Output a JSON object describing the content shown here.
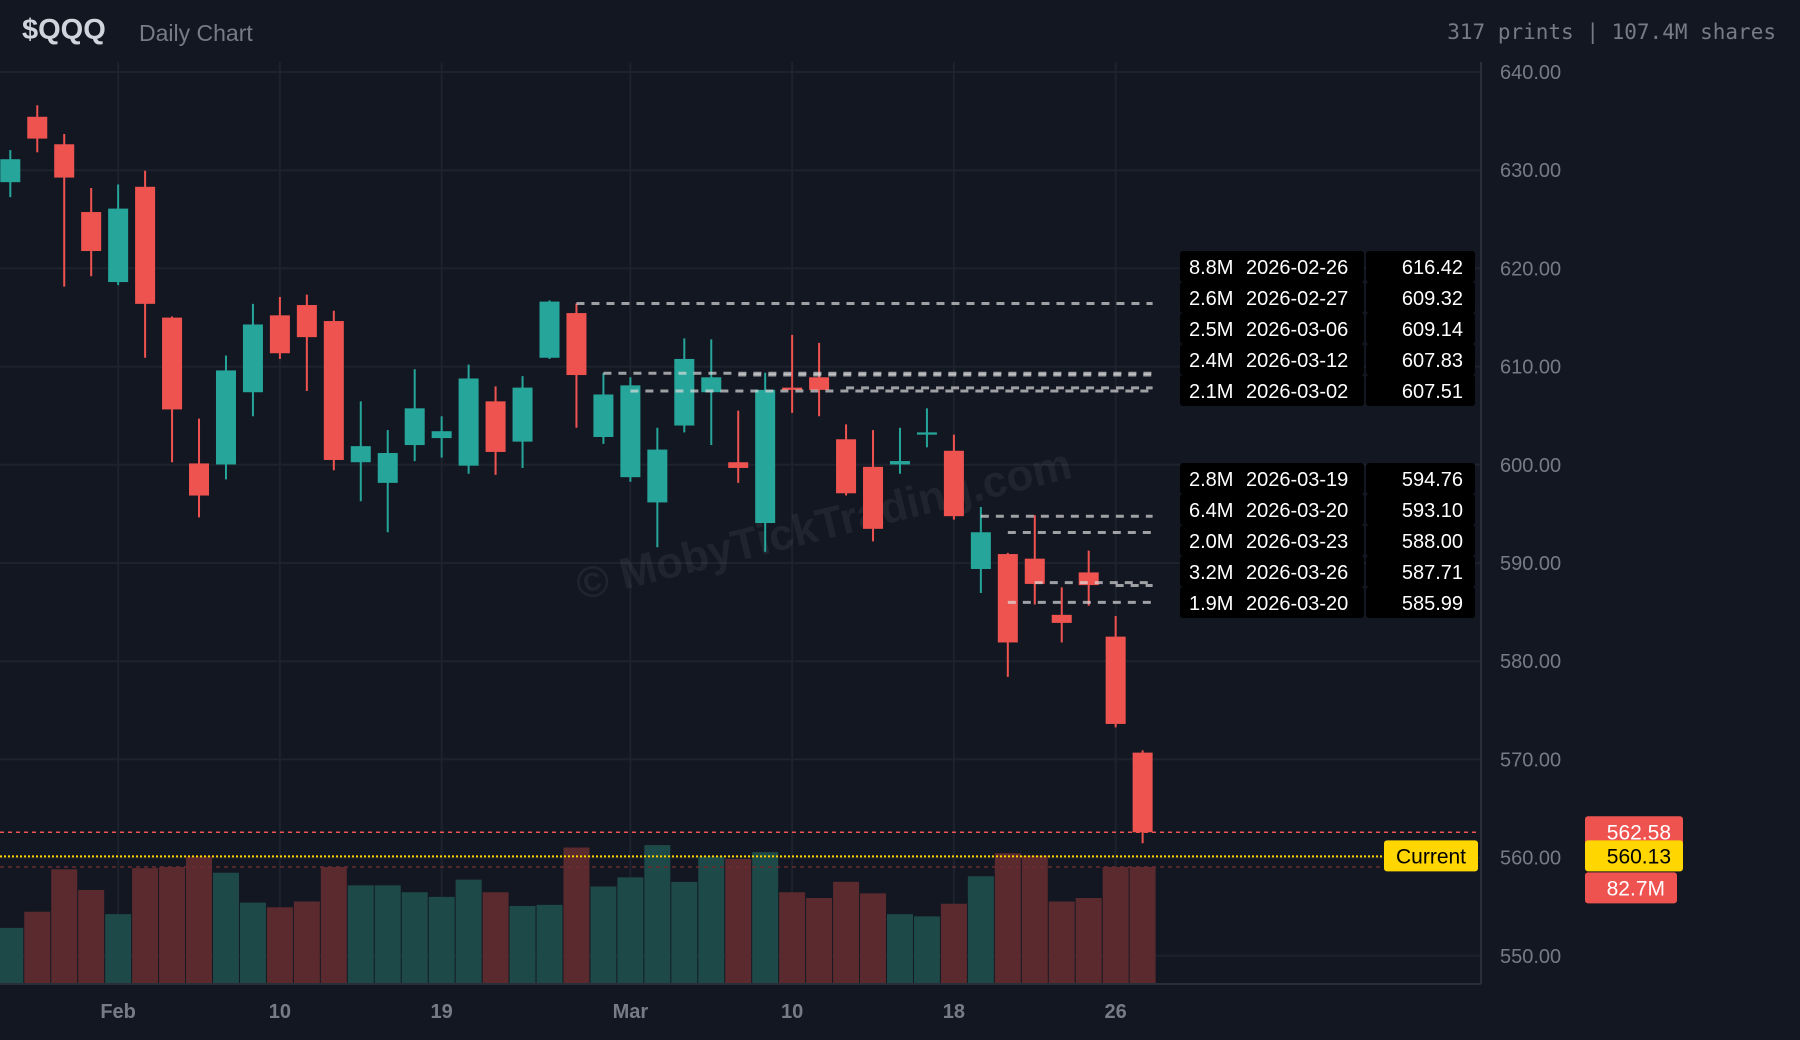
{
  "header": {
    "ticker": "$QQQ",
    "subtitle": "Daily Chart",
    "stats": "317 prints | 107.4M shares"
  },
  "colors": {
    "up": "#26a69a",
    "down": "#ef5350",
    "background": "#131722",
    "grid": "#1e222d",
    "current": "#ffd600",
    "axis_text": "#787b86"
  },
  "chart_data": {
    "type": "candlestick",
    "title": "",
    "ylim": [
      548,
      642
    ],
    "y_ticks": [
      "640.00",
      "630.00",
      "620.00",
      "610.00",
      "600.00",
      "590.00",
      "580.00",
      "570.00",
      "560.00",
      "550.00"
    ],
    "x_ticks": [
      {
        "label": "Feb",
        "date": "2026-02-02"
      },
      {
        "label": "10",
        "date": "2026-02-10"
      },
      {
        "label": "19",
        "date": "2026-02-19"
      },
      {
        "label": "Mar",
        "date": "2026-03-02"
      },
      {
        "label": "10",
        "date": "2026-03-10"
      },
      {
        "label": "18",
        "date": "2026-03-18"
      },
      {
        "label": "26",
        "date": "2026-03-26"
      }
    ],
    "grid": true,
    "candles": [
      {
        "date": "2026-01-27",
        "o": 628.78,
        "h": 632.05,
        "l": 627.26,
        "c": 631.12,
        "v": 39.3
      },
      {
        "date": "2026-01-28",
        "o": 635.44,
        "h": 636.61,
        "l": 631.82,
        "c": 633.22,
        "v": 50.8
      },
      {
        "date": "2026-01-29",
        "o": 632.64,
        "h": 633.69,
        "l": 618.14,
        "c": 629.25,
        "v": 81.1
      },
      {
        "date": "2026-01-30",
        "o": 625.74,
        "h": 628.19,
        "l": 619.2,
        "c": 621.77,
        "v": 66.3
      },
      {
        "date": "2026-02-02",
        "o": 618.61,
        "h": 628.55,
        "l": 618.3,
        "c": 626.09,
        "v": 49.1
      },
      {
        "date": "2026-02-03",
        "o": 628.31,
        "h": 629.95,
        "l": 610.9,
        "c": 616.39,
        "v": 81.9
      },
      {
        "date": "2026-02-04",
        "o": 614.99,
        "h": 615.1,
        "l": 600.26,
        "c": 605.64,
        "v": 82.7
      },
      {
        "date": "2026-02-05",
        "o": 600.14,
        "h": 604.7,
        "l": 594.65,
        "c": 596.87,
        "v": 90.1
      },
      {
        "date": "2026-02-06",
        "o": 600.03,
        "h": 611.13,
        "l": 598.51,
        "c": 609.61,
        "v": 78.6
      },
      {
        "date": "2026-02-09",
        "o": 607.39,
        "h": 616.39,
        "l": 604.94,
        "c": 614.29,
        "v": 57.3
      },
      {
        "date": "2026-02-10",
        "o": 615.22,
        "h": 617.09,
        "l": 610.78,
        "c": 611.36,
        "v": 54.0
      },
      {
        "date": "2026-02-11",
        "o": 616.27,
        "h": 617.33,
        "l": 607.51,
        "c": 613.0,
        "v": 58.1
      },
      {
        "date": "2026-02-12",
        "o": 614.64,
        "h": 615.69,
        "l": 599.44,
        "c": 600.49,
        "v": 82.7
      },
      {
        "date": "2026-02-13",
        "o": 600.26,
        "h": 606.46,
        "l": 596.29,
        "c": 601.9,
        "v": 69.6
      },
      {
        "date": "2026-02-17",
        "o": 598.16,
        "h": 603.53,
        "l": 593.13,
        "c": 601.2,
        "v": 69.6
      },
      {
        "date": "2026-02-18",
        "o": 602.01,
        "h": 609.73,
        "l": 600.38,
        "c": 605.75,
        "v": 64.7
      },
      {
        "date": "2026-02-19",
        "o": 602.72,
        "h": 604.94,
        "l": 600.73,
        "c": 603.42,
        "v": 61.4
      },
      {
        "date": "2026-02-20",
        "o": 599.91,
        "h": 610.2,
        "l": 599.09,
        "c": 608.79,
        "v": 73.7
      },
      {
        "date": "2026-02-23",
        "o": 606.46,
        "h": 607.98,
        "l": 598.98,
        "c": 601.31,
        "v": 64.7
      },
      {
        "date": "2026-02-24",
        "o": 602.36,
        "h": 609.03,
        "l": 599.68,
        "c": 607.86,
        "v": 54.9
      },
      {
        "date": "2026-02-25",
        "o": 610.9,
        "h": 616.74,
        "l": 610.78,
        "c": 616.62,
        "v": 55.7
      },
      {
        "date": "2026-02-26",
        "o": 615.45,
        "h": 616.42,
        "l": 603.77,
        "c": 609.14,
        "v": 96.6
      },
      {
        "date": "2026-02-27",
        "o": 602.83,
        "h": 609.32,
        "l": 602.13,
        "c": 607.16,
        "v": 68.8
      },
      {
        "date": "2026-03-02",
        "o": 598.74,
        "h": 608.91,
        "l": 598.27,
        "c": 608.09,
        "v": 75.3
      },
      {
        "date": "2026-03-03",
        "o": 596.17,
        "h": 603.77,
        "l": 591.61,
        "c": 601.55,
        "v": 98.3
      },
      {
        "date": "2026-03-04",
        "o": 604.0,
        "h": 612.88,
        "l": 603.3,
        "c": 610.78,
        "v": 72.1
      },
      {
        "date": "2026-03-05",
        "o": 607.39,
        "h": 612.77,
        "l": 602.01,
        "c": 608.91,
        "v": 90.1
      },
      {
        "date": "2026-03-06",
        "o": 600.26,
        "h": 605.52,
        "l": 598.16,
        "c": 599.68,
        "v": 88.4
      },
      {
        "date": "2026-03-09",
        "o": 594.07,
        "h": 609.38,
        "l": 591.14,
        "c": 607.63,
        "v": 93.3
      },
      {
        "date": "2026-03-10",
        "o": 607.86,
        "h": 613.23,
        "l": 605.29,
        "c": 607.63,
        "v": 64.7
      },
      {
        "date": "2026-03-11",
        "o": 608.91,
        "h": 612.42,
        "l": 604.94,
        "c": 607.63,
        "v": 60.6
      },
      {
        "date": "2026-03-12",
        "o": 602.6,
        "h": 604.12,
        "l": 596.87,
        "c": 597.1,
        "v": 72.1
      },
      {
        "date": "2026-03-13",
        "o": 599.79,
        "h": 603.53,
        "l": 592.2,
        "c": 593.48,
        "v": 63.9
      },
      {
        "date": "2026-03-16",
        "o": 600.03,
        "h": 603.77,
        "l": 599.09,
        "c": 600.38,
        "v": 49.1
      },
      {
        "date": "2026-03-17",
        "o": 603.07,
        "h": 605.75,
        "l": 601.78,
        "c": 603.3,
        "v": 47.5
      },
      {
        "date": "2026-03-18",
        "o": 601.43,
        "h": 603.07,
        "l": 594.42,
        "c": 594.77,
        "v": 56.5
      },
      {
        "date": "2026-03-19",
        "o": 589.39,
        "h": 595.7,
        "l": 586.94,
        "c": 593.13,
        "v": 76.1
      },
      {
        "date": "2026-03-20",
        "o": 590.91,
        "h": 591.03,
        "l": 578.41,
        "c": 581.91,
        "v": 92.5
      },
      {
        "date": "2026-03-23",
        "o": 590.44,
        "h": 594.88,
        "l": 585.77,
        "c": 587.87,
        "v": 90.9
      },
      {
        "date": "2026-03-24",
        "o": 584.72,
        "h": 587.52,
        "l": 581.91,
        "c": 583.9,
        "v": 58.1
      },
      {
        "date": "2026-03-25",
        "o": 589.04,
        "h": 591.26,
        "l": 585.65,
        "c": 587.75,
        "v": 60.6
      },
      {
        "date": "2026-03-26",
        "o": 582.5,
        "h": 584.6,
        "l": 573.26,
        "c": 573.61,
        "v": 82.7
      },
      {
        "date": "2026-03-27",
        "o": 570.69,
        "h": 570.92,
        "l": 561.46,
        "c": 562.58,
        "v": 82.7
      }
    ],
    "level_groups": [
      [
        {
          "volume": "8.8M",
          "date": "2026-02-26",
          "price": "616.42"
        },
        {
          "volume": "2.6M",
          "date": "2026-02-27",
          "price": "609.32"
        },
        {
          "volume": "2.5M",
          "date": "2026-03-06",
          "price": "609.14"
        },
        {
          "volume": "2.4M",
          "date": "2026-03-12",
          "price": "607.83"
        },
        {
          "volume": "2.1M",
          "date": "2026-03-02",
          "price": "607.51"
        }
      ],
      [
        {
          "volume": "2.8M",
          "date": "2026-03-19",
          "price": "594.76"
        },
        {
          "volume": "6.4M",
          "date": "2026-03-20",
          "price": "593.10"
        },
        {
          "volume": "2.0M",
          "date": "2026-03-23",
          "price": "588.00"
        },
        {
          "volume": "3.2M",
          "date": "2026-03-26",
          "price": "587.71"
        },
        {
          "volume": "1.9M",
          "date": "2026-03-20",
          "price": "585.99"
        }
      ]
    ],
    "last_close": {
      "value": 562.58,
      "label": "562.58"
    },
    "current": {
      "value": 560.13,
      "label": "560.13",
      "tag": "Current"
    },
    "last_volume": {
      "value": 82.7,
      "label": "82.7M"
    }
  },
  "watermark": "© MobyTickTrading.com"
}
